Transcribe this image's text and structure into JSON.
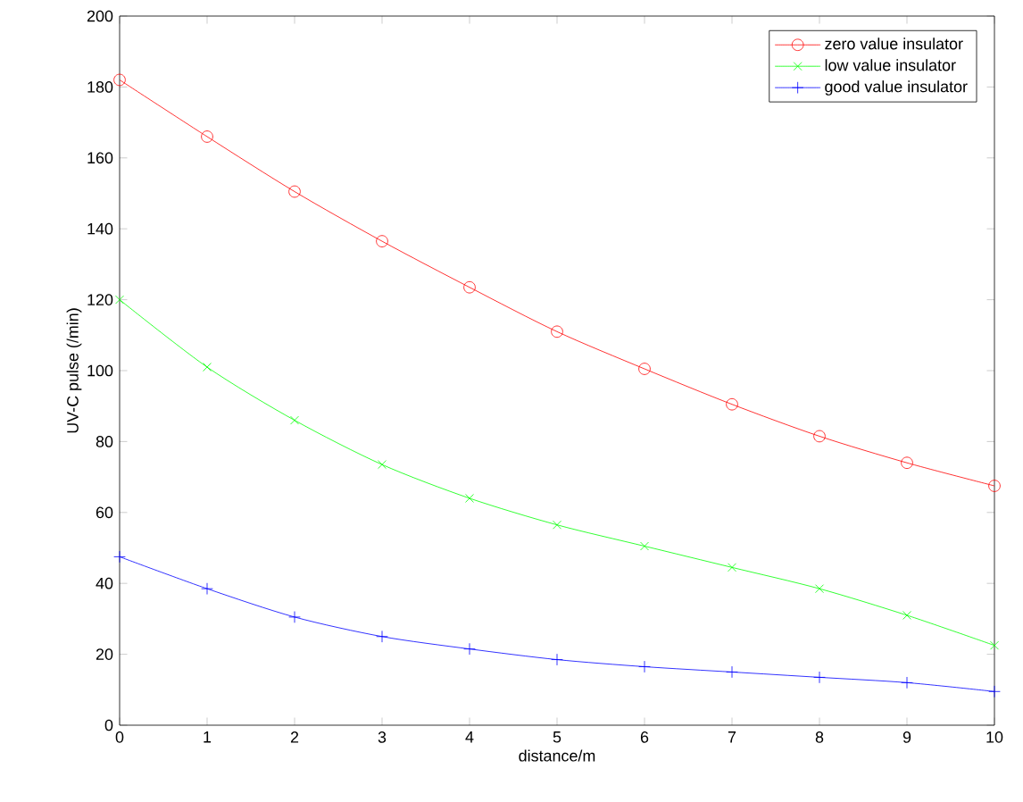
{
  "chart_data": {
    "type": "line",
    "xlabel": "distance/m",
    "ylabel": "UV-C pulse (/min)",
    "x": [
      0,
      1,
      2,
      3,
      4,
      5,
      6,
      7,
      8,
      9,
      10
    ],
    "series": [
      {
        "name": "zero value insulator",
        "color": "#ff0000",
        "marker": "circle",
        "values": [
          182,
          166,
          150.5,
          136.5,
          123.5,
          111,
          100.5,
          90.5,
          81.5,
          74,
          67.5
        ]
      },
      {
        "name": "low  value insulator",
        "color": "#00ff00",
        "marker": "cross",
        "values": [
          120,
          101,
          86,
          73.5,
          64,
          56.5,
          50.5,
          44.5,
          38.5,
          31,
          22.5
        ]
      },
      {
        "name": "good value insulator",
        "color": "#0000ff",
        "marker": "plus",
        "values": [
          47.5,
          38.5,
          30.5,
          25,
          21.5,
          18.5,
          16.5,
          15,
          13.5,
          12,
          9.5
        ]
      }
    ],
    "xlim": [
      0,
      10
    ],
    "ylim": [
      0,
      200
    ],
    "xticks": [
      0,
      1,
      2,
      3,
      4,
      5,
      6,
      7,
      8,
      9,
      10
    ],
    "yticks": [
      0,
      20,
      40,
      60,
      80,
      100,
      120,
      140,
      160,
      180,
      200
    ],
    "grid": false,
    "legend": "top right"
  }
}
